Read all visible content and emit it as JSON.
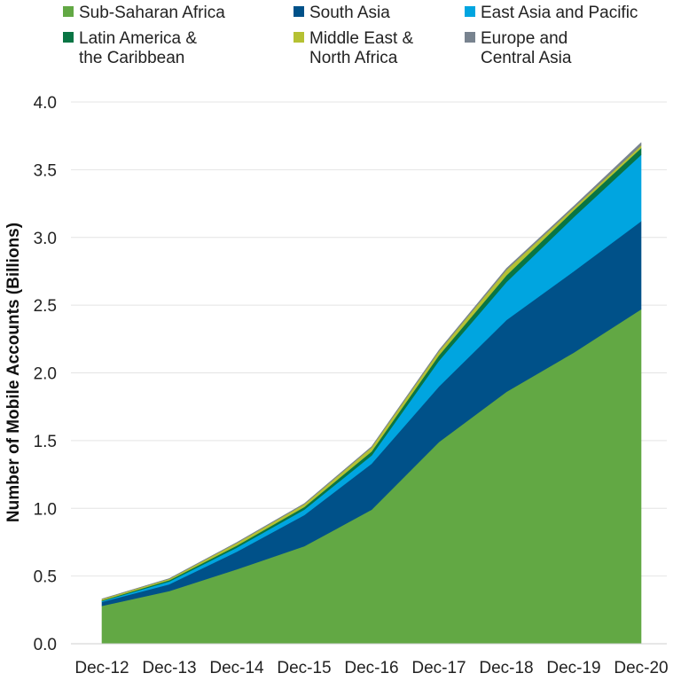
{
  "chart_data": {
    "type": "area",
    "stacked": true,
    "title": "",
    "xlabel": "",
    "ylabel": "Number of Mobile Accounts (Billions)",
    "ylim": [
      0,
      4.0
    ],
    "yticks": [
      "0.0",
      "0.5",
      "1.0",
      "1.5",
      "2.0",
      "2.5",
      "3.0",
      "3.5",
      "4.0"
    ],
    "grid": true,
    "legend_position": "top",
    "categories": [
      "Dec-12",
      "Dec-13",
      "Dec-14",
      "Dec-15",
      "Dec-16",
      "Dec-17",
      "Dec-18",
      "Dec-19",
      "Dec-20"
    ],
    "series": [
      {
        "name": "Sub-Saharan Africa",
        "color": "#62a844",
        "values": [
          0.28,
          0.39,
          0.55,
          0.72,
          0.99,
          1.49,
          1.86,
          2.15,
          2.47
        ]
      },
      {
        "name": "South Asia",
        "color": "#005189",
        "values": [
          0.03,
          0.05,
          0.13,
          0.23,
          0.34,
          0.41,
          0.53,
          0.6,
          0.65
        ]
      },
      {
        "name": "East Asia and Pacific",
        "color": "#00a5e0",
        "values": [
          0.005,
          0.02,
          0.03,
          0.04,
          0.06,
          0.19,
          0.28,
          0.4,
          0.49
        ]
      },
      {
        "name": "Latin America & the Caribbean",
        "color": "#097544",
        "values": [
          0.005,
          0.01,
          0.015,
          0.02,
          0.03,
          0.04,
          0.05,
          0.05,
          0.05
        ]
      },
      {
        "name": "Middle East & North Africa",
        "color": "#b5c133",
        "values": [
          0.01,
          0.01,
          0.02,
          0.02,
          0.03,
          0.03,
          0.04,
          0.02,
          0.02
        ]
      },
      {
        "name": "Europe and Central Asia",
        "color": "#78838f",
        "values": [
          0.001,
          0.002,
          0.003,
          0.004,
          0.005,
          0.007,
          0.01,
          0.01,
          0.02
        ]
      }
    ]
  }
}
